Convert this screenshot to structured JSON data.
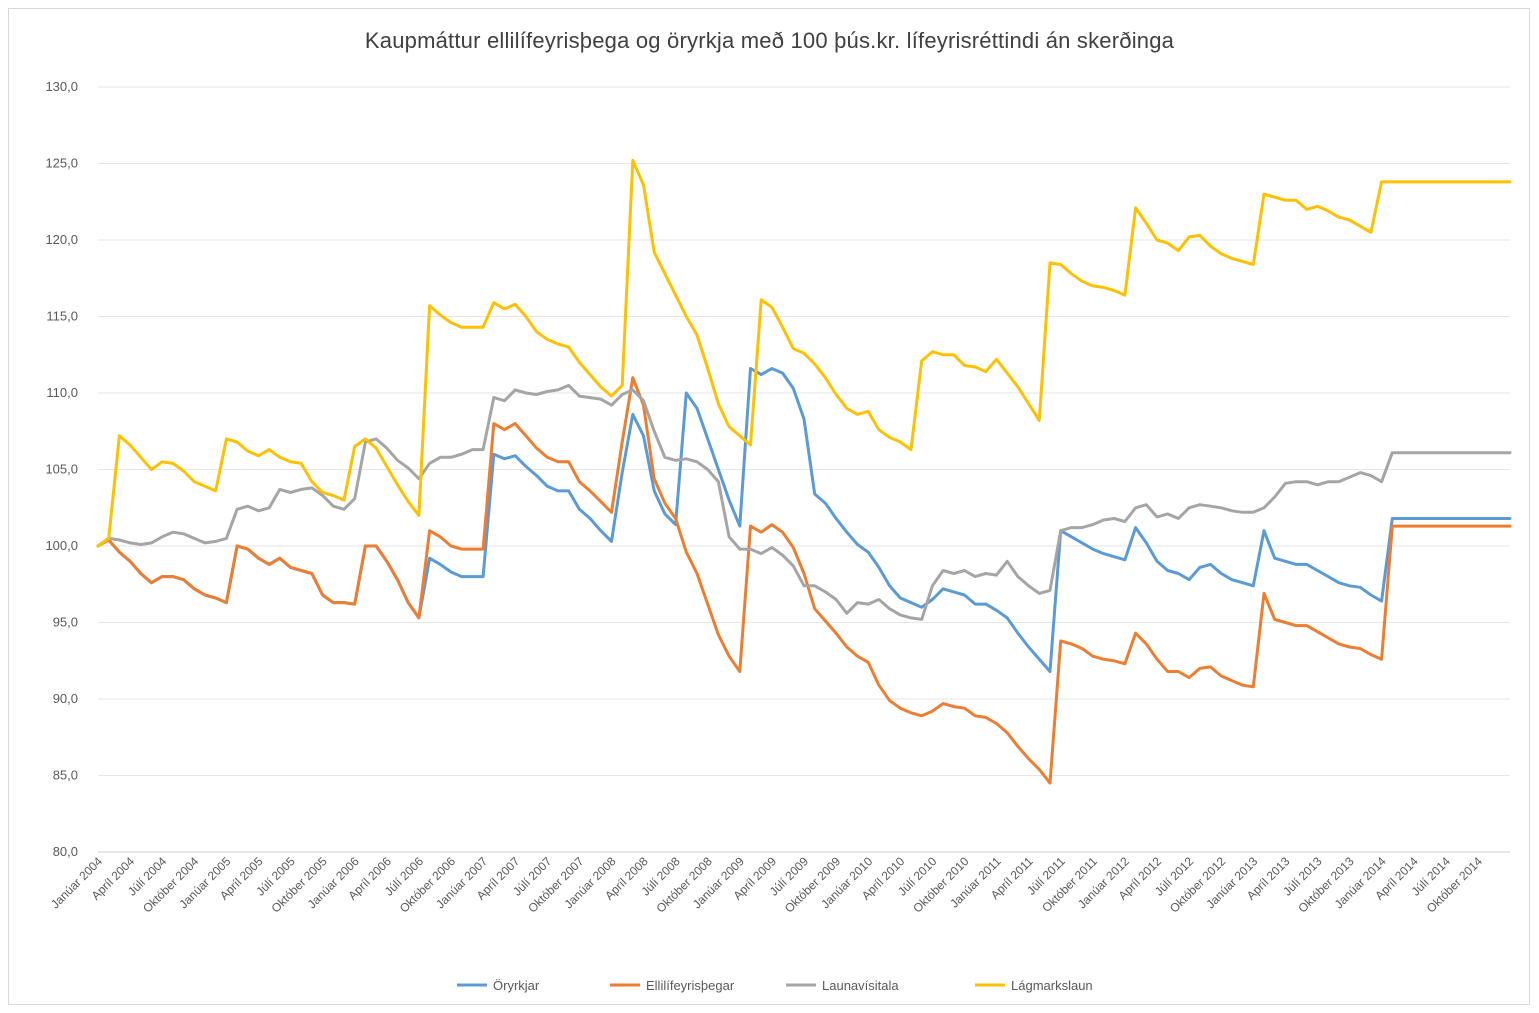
{
  "chart_data": {
    "type": "line",
    "title": "Kaupmáttur ellilífeyrisþega og öryrkja með 100 þús.kr. lífeyrisréttindi án skerðinga",
    "xlabel": "",
    "ylabel": "",
    "ylim": [
      80,
      130
    ],
    "yticks": [
      "80,0",
      "85,0",
      "90,0",
      "95,0",
      "100,0",
      "105,0",
      "110,0",
      "115,0",
      "120,0",
      "125,0",
      "130,0"
    ],
    "grid": true,
    "legend_position": "bottom",
    "x_tick_labels": [
      "Janúar 2004",
      "Apríl 2004",
      "Júlí 2004",
      "Október 2004",
      "Janúar 2005",
      "Apríl 2005",
      "Júlí 2005",
      "Október 2005",
      "Janúar 2006",
      "Apríl 2006",
      "Júlí 2006",
      "Október 2006",
      "Janúar 2007",
      "Apríl 2007",
      "Júlí 2007",
      "Október 2007",
      "Janúar 2008",
      "Apríl 2008",
      "Júlí 2008",
      "Október 2008",
      "Janúar 2009",
      "Apríl 2009",
      "Júlí 2009",
      "Október 2009",
      "Janúar 2010",
      "Apríl 2010",
      "Júlí 2010",
      "Október 2010",
      "Janúar 2011",
      "Apríl 2011",
      "Júlí 2011",
      "Október 2011",
      "Janúar 2012",
      "Apríl 2012",
      "Júlí 2012",
      "Október 2012",
      "Janúar 2013",
      "Apríl 2013",
      "Júlí 2013",
      "Október 2013",
      "Janúar 2014",
      "Apríl 2014",
      "Júlí 2014",
      "Október 2014"
    ],
    "series": [
      {
        "name": "Öryrkjar",
        "color": "#5b9bd5",
        "values": [
          100.0,
          100.4,
          99.6,
          99.0,
          98.2,
          97.6,
          98.0,
          98.0,
          97.8,
          97.2,
          96.8,
          96.6,
          96.3,
          100.0,
          99.8,
          99.2,
          98.8,
          99.2,
          98.6,
          98.4,
          98.2,
          96.8,
          96.3,
          96.3,
          96.2,
          100.0,
          100.0,
          99.0,
          97.8,
          96.3,
          95.3,
          99.2,
          98.8,
          98.3,
          98.0,
          98.0,
          98.0,
          106.0,
          105.7,
          105.9,
          105.2,
          104.6,
          103.9,
          103.6,
          103.6,
          102.4,
          101.8,
          101.0,
          100.3,
          104.8,
          108.6,
          107.2,
          103.6,
          102.1,
          101.4,
          110.0,
          109.0,
          107.0,
          105.0,
          103.0,
          101.3,
          111.6,
          111.2,
          111.6,
          111.3,
          110.3,
          108.3,
          103.4,
          102.8,
          101.8,
          100.9,
          100.1,
          99.6,
          98.6,
          97.4,
          96.6,
          96.3,
          96.0,
          96.5,
          97.2,
          97.0,
          96.8,
          96.2,
          96.2,
          95.8,
          95.3,
          94.3,
          93.4,
          92.6,
          91.8,
          101.0,
          100.6,
          100.2,
          99.8,
          99.5,
          99.3,
          99.1,
          101.2,
          100.2,
          99.0,
          98.4,
          98.2,
          97.8,
          98.6,
          98.8,
          98.2,
          97.8,
          97.6,
          97.4,
          101.0,
          99.2,
          99.0,
          98.8,
          98.8,
          98.4,
          98.0,
          97.6,
          97.4,
          97.3,
          96.8,
          96.4,
          101.8,
          101.8,
          101.8,
          101.8,
          101.8,
          101.8,
          101.8,
          101.8,
          101.8,
          101.8,
          101.8,
          101.8
        ]
      },
      {
        "name": "Ellilífeyrisþegar",
        "color": "#ed7d31",
        "values": [
          100.0,
          100.4,
          99.6,
          99.0,
          98.2,
          97.6,
          98.0,
          98.0,
          97.8,
          97.2,
          96.8,
          96.6,
          96.3,
          100.0,
          99.8,
          99.2,
          98.8,
          99.2,
          98.6,
          98.4,
          98.2,
          96.8,
          96.3,
          96.3,
          96.2,
          100.0,
          100.0,
          99.0,
          97.8,
          96.3,
          95.3,
          101.0,
          100.6,
          100.0,
          99.8,
          99.8,
          99.8,
          108.0,
          107.6,
          108.0,
          107.2,
          106.4,
          105.8,
          105.5,
          105.5,
          104.2,
          103.6,
          102.9,
          102.2,
          106.8,
          111.0,
          109.2,
          104.4,
          102.8,
          101.8,
          99.6,
          98.2,
          96.2,
          94.2,
          92.8,
          91.8,
          101.3,
          100.9,
          101.4,
          100.9,
          99.9,
          98.2,
          95.9,
          95.1,
          94.3,
          93.4,
          92.8,
          92.4,
          90.9,
          89.9,
          89.4,
          89.1,
          88.9,
          89.2,
          89.7,
          89.5,
          89.4,
          88.9,
          88.8,
          88.4,
          87.8,
          86.9,
          86.1,
          85.4,
          84.5,
          93.8,
          93.6,
          93.3,
          92.8,
          92.6,
          92.5,
          92.3,
          94.3,
          93.6,
          92.6,
          91.8,
          91.8,
          91.4,
          92.0,
          92.1,
          91.5,
          91.2,
          90.9,
          90.8,
          96.9,
          95.2,
          95.0,
          94.8,
          94.8,
          94.4,
          94.0,
          93.6,
          93.4,
          93.3,
          92.9,
          92.6,
          101.3,
          101.3,
          101.3,
          101.3,
          101.3,
          101.3,
          101.3,
          101.3,
          101.3,
          101.3,
          101.3,
          101.3
        ]
      },
      {
        "name": "Launavísitala",
        "color": "#a5a5a5",
        "values": [
          100.0,
          100.5,
          100.4,
          100.2,
          100.1,
          100.2,
          100.6,
          100.9,
          100.8,
          100.5,
          100.2,
          100.3,
          100.5,
          102.4,
          102.6,
          102.3,
          102.5,
          103.7,
          103.5,
          103.7,
          103.8,
          103.3,
          102.6,
          102.4,
          103.1,
          106.8,
          107.0,
          106.4,
          105.6,
          105.1,
          104.4,
          105.4,
          105.8,
          105.8,
          106.0,
          106.3,
          106.3,
          109.7,
          109.5,
          110.2,
          110.0,
          109.9,
          110.1,
          110.2,
          110.5,
          109.8,
          109.7,
          109.6,
          109.2,
          109.9,
          110.2,
          109.5,
          107.5,
          105.8,
          105.6,
          105.7,
          105.5,
          105.0,
          104.2,
          100.6,
          99.8,
          99.8,
          99.5,
          99.9,
          99.4,
          98.7,
          97.4,
          97.4,
          97.0,
          96.5,
          95.6,
          96.3,
          96.2,
          96.5,
          95.9,
          95.5,
          95.3,
          95.2,
          97.4,
          98.4,
          98.2,
          98.4,
          98.0,
          98.2,
          98.1,
          99.0,
          98.0,
          97.4,
          96.9,
          97.1,
          101.0,
          101.2,
          101.2,
          101.4,
          101.7,
          101.8,
          101.6,
          102.5,
          102.7,
          101.9,
          102.1,
          101.8,
          102.5,
          102.7,
          102.6,
          102.5,
          102.3,
          102.2,
          102.2,
          102.5,
          103.2,
          104.1,
          104.2,
          104.2,
          104.0,
          104.2,
          104.2,
          104.5,
          104.8,
          104.6,
          104.2,
          106.1,
          106.1,
          106.1,
          106.1,
          106.1,
          106.1,
          106.1,
          106.1,
          106.1,
          106.1,
          106.1,
          106.1
        ]
      },
      {
        "name": "Lágmarkslaun",
        "color": "#ffc000",
        "values": [
          100.0,
          100.5,
          107.2,
          106.6,
          105.8,
          105.0,
          105.5,
          105.4,
          104.9,
          104.2,
          103.9,
          103.6,
          107.0,
          106.8,
          106.2,
          105.9,
          106.3,
          105.8,
          105.5,
          105.4,
          104.2,
          103.5,
          103.3,
          103.0,
          106.5,
          107.0,
          106.4,
          105.2,
          104.0,
          102.9,
          102.0,
          115.7,
          115.1,
          114.6,
          114.3,
          114.3,
          114.3,
          115.9,
          115.5,
          115.8,
          115.0,
          114.0,
          113.5,
          113.2,
          113.0,
          112.0,
          111.2,
          110.4,
          109.8,
          110.5,
          125.2,
          123.6,
          119.2,
          117.8,
          116.4,
          115.0,
          113.8,
          111.6,
          109.3,
          107.8,
          107.2,
          106.6,
          116.1,
          115.6,
          114.3,
          112.9,
          112.6,
          111.9,
          111.0,
          109.9,
          109.0,
          108.6,
          108.8,
          107.6,
          107.1,
          106.8,
          106.3,
          112.1,
          112.7,
          112.5,
          112.5,
          111.8,
          111.7,
          111.4,
          112.2,
          111.3,
          110.4,
          109.3,
          108.2,
          118.5,
          118.4,
          117.8,
          117.3,
          117.0,
          116.9,
          116.7,
          116.4,
          122.1,
          121.1,
          120.0,
          119.8,
          119.3,
          120.2,
          120.3,
          119.6,
          119.1,
          118.8,
          118.6,
          118.4,
          123.0,
          122.8,
          122.6,
          122.6,
          122.0,
          122.2,
          121.9,
          121.5,
          121.3,
          120.9,
          120.5,
          123.8,
          123.8,
          123.8,
          123.8,
          123.8,
          123.8,
          123.8,
          123.8,
          123.8,
          123.8,
          123.8,
          123.8,
          123.8
        ]
      }
    ]
  }
}
